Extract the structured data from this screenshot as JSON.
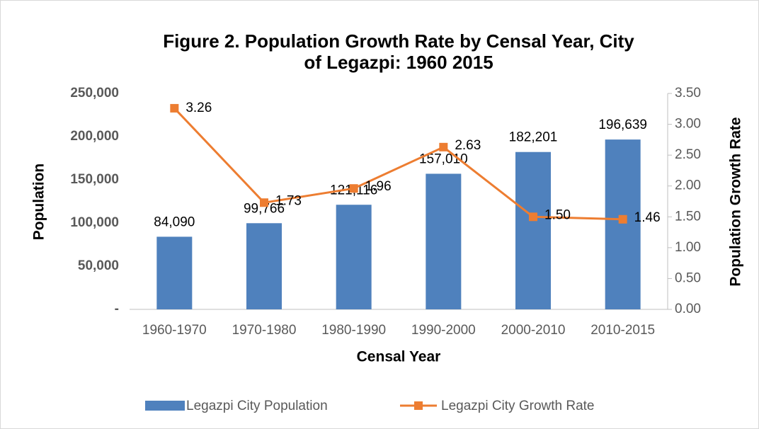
{
  "chart_data": {
    "type": "bar",
    "title": "Figure 2. Population Growth Rate by Censal Year, City",
    "title_line2": "of Legazpi: 1960 2015",
    "xlabel": "Censal Year",
    "ylabel": "Population",
    "y2label": "Population Growth Rate",
    "categories": [
      "1960-1970",
      "1970-1980",
      "1980-1990",
      "1990-2000",
      "2000-2010",
      "2010-2015"
    ],
    "series": [
      {
        "name": "Legazpi City Population",
        "type": "bar",
        "color": "#4f81bd",
        "values": [
          84090,
          99766,
          121116,
          157010,
          182201,
          196639
        ],
        "value_labels": [
          "84,090",
          "99,766",
          "121,116",
          "157,010",
          "182,201",
          "196,639"
        ]
      },
      {
        "name": "Legazpi City Growth Rate",
        "type": "line",
        "axis": "y2",
        "color": "#ed7d31",
        "values": [
          3.26,
          1.73,
          1.96,
          2.63,
          1.5,
          1.46
        ],
        "value_labels": [
          "3.26",
          "1.73",
          "1.96",
          "2.63",
          "1.50",
          "1.46"
        ]
      }
    ],
    "ylim": [
      0,
      250000
    ],
    "yticks": [
      {
        "value": 0,
        "label": "-"
      },
      {
        "value": 50000,
        "label": "50,000"
      },
      {
        "value": 100000,
        "label": "100,000"
      },
      {
        "value": 150000,
        "label": "150,000"
      },
      {
        "value": 200000,
        "label": "200,000"
      },
      {
        "value": 250000,
        "label": "250,000"
      }
    ],
    "y2lim": [
      0,
      3.5
    ],
    "y2ticks": [
      {
        "value": 0,
        "label": "0.00"
      },
      {
        "value": 0.5,
        "label": "0.50"
      },
      {
        "value": 1,
        "label": "1.00"
      },
      {
        "value": 1.5,
        "label": "1.50"
      },
      {
        "value": 2,
        "label": "2.00"
      },
      {
        "value": 2.5,
        "label": "2.50"
      },
      {
        "value": 3,
        "label": "3.00"
      },
      {
        "value": 3.5,
        "label": "3.50"
      }
    ],
    "grid": false,
    "legend": "bottom"
  }
}
